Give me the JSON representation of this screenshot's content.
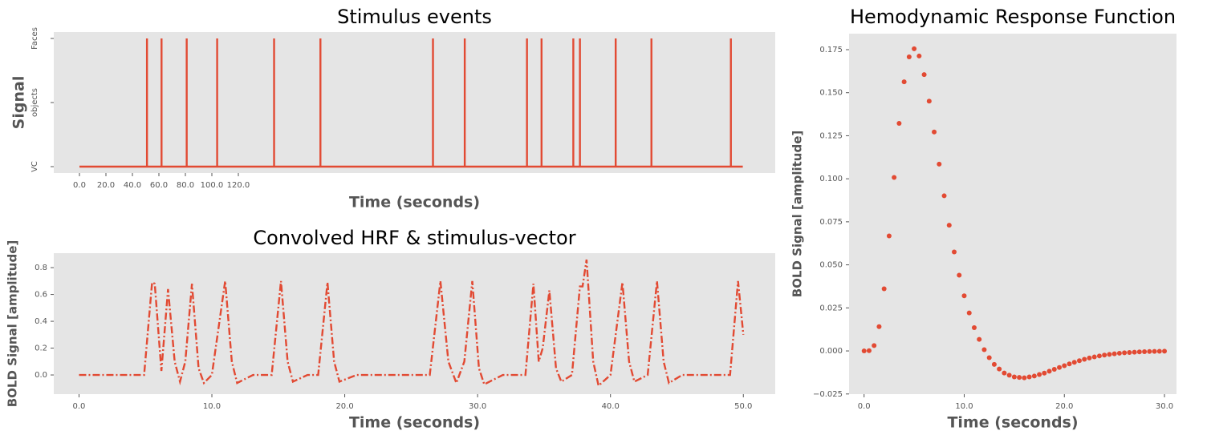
{
  "chart_data": [
    {
      "type": "line",
      "title": "Stimulus events",
      "xlabel": "Time (seconds)",
      "ylabel": "Signal",
      "color": "#E24A33",
      "linestyle": "solid",
      "grid": false,
      "x": [
        0,
        51,
        51,
        51,
        62,
        62,
        62,
        81,
        81,
        81,
        104,
        104,
        104,
        147,
        147,
        147,
        182,
        182,
        182,
        267,
        267,
        267,
        291,
        291,
        291,
        338,
        338,
        338,
        349,
        349,
        349,
        373,
        373,
        373,
        378,
        378,
        378,
        405,
        405,
        405,
        432,
        432,
        432,
        492,
        492,
        492,
        501
      ],
      "values": [
        0,
        0,
        2,
        0,
        0,
        2,
        0,
        0,
        2,
        0,
        0,
        2,
        0,
        0,
        2,
        0,
        0,
        2,
        0,
        0,
        2,
        0,
        0,
        2,
        0,
        0,
        2,
        0,
        0,
        2,
        0,
        0,
        2,
        0,
        0,
        2,
        0,
        0,
        2,
        0,
        0,
        2,
        0,
        0,
        2,
        0,
        0
      ],
      "xlim": [
        -19.4,
        525.5
      ],
      "ylim": [
        -0.1,
        2.1
      ],
      "xticks": [
        {
          "value": 0,
          "label": "0.0"
        },
        {
          "value": 20,
          "label": "20.0"
        },
        {
          "value": 40,
          "label": "40.0"
        },
        {
          "value": 60,
          "label": "60.0"
        },
        {
          "value": 80,
          "label": "80.0"
        },
        {
          "value": 100,
          "label": "100.0"
        },
        {
          "value": 120,
          "label": "120.0"
        }
      ],
      "yticks": [
        {
          "value": 0,
          "label": "VC"
        },
        {
          "value": 1,
          "label": "objects"
        },
        {
          "value": 2,
          "label": "Faces"
        }
      ]
    },
    {
      "type": "line",
      "title": "Convolved HRF & stimulus-vector",
      "xlabel": "Time (seconds)",
      "ylabel": "BOLD Signal [amplitude]",
      "color": "#E24A33",
      "linestyle": "dashdot",
      "grid": false,
      "x": [
        0,
        4.9,
        5.5,
        5.7,
        6.2,
        6.7,
        7.2,
        7.6,
        8.0,
        8.5,
        9.0,
        9.4,
        10.0,
        11.0,
        11.5,
        11.9,
        13.1,
        14.5,
        15.2,
        15.7,
        16.1,
        17.2,
        18.0,
        18.7,
        19.2,
        19.6,
        20.9,
        26.4,
        27.2,
        27.8,
        28.4,
        29.0,
        29.6,
        30.1,
        30.5,
        31.9,
        33.6,
        34.2,
        34.6,
        34.9,
        35.4,
        35.9,
        36.3,
        37.1,
        37.7,
        37.9,
        38.2,
        38.7,
        39.1,
        40.0,
        40.9,
        41.4,
        41.8,
        42.8,
        43.5,
        44.0,
        44.4,
        45.4,
        49.0,
        49.6,
        50
      ],
      "values": [
        0,
        0,
        0.69,
        0.68,
        0.03,
        0.64,
        0.1,
        -0.05,
        0.1,
        0.68,
        0.05,
        -0.06,
        0,
        0.7,
        0.1,
        -0.06,
        0,
        0,
        0.7,
        0.1,
        -0.05,
        0,
        0,
        0.69,
        0.1,
        -0.05,
        0,
        0,
        0.7,
        0.1,
        -0.06,
        0.1,
        0.7,
        0.05,
        -0.07,
        0,
        0,
        0.68,
        0.1,
        0.2,
        0.63,
        0.05,
        -0.05,
        0,
        0.66,
        0.66,
        0.86,
        0.1,
        -0.08,
        0,
        0.69,
        0.1,
        -0.05,
        0,
        0.7,
        0.1,
        -0.06,
        0,
        0,
        0.7,
        0.3
      ],
      "xlim": [
        -1.9,
        52.4
      ],
      "ylim": [
        -0.143,
        0.908
      ],
      "xticks": [
        {
          "value": 0,
          "label": "0.0"
        },
        {
          "value": 10,
          "label": "10.0"
        },
        {
          "value": 20,
          "label": "20.0"
        },
        {
          "value": 30,
          "label": "30.0"
        },
        {
          "value": 40,
          "label": "40.0"
        },
        {
          "value": 50,
          "label": "50.0"
        }
      ],
      "yticks": [
        {
          "value": 0,
          "label": "0.0"
        },
        0.2,
        0.4,
        0.6,
        0.8
      ]
    },
    {
      "type": "scatter",
      "title": "Hemodynamic Response Function",
      "xlabel": "Time (seconds)",
      "ylabel": "BOLD Signal [amplitude]",
      "color": "#E24A33",
      "grid": false,
      "x": [
        0,
        0.5,
        1,
        1.5,
        2,
        2.5,
        3,
        3.5,
        4,
        4.5,
        5,
        5.5,
        6,
        6.5,
        7,
        7.5,
        8,
        8.5,
        9,
        9.5,
        10,
        10.5,
        11,
        11.5,
        12,
        12.5,
        13,
        13.5,
        14,
        14.5,
        15,
        15.5,
        16,
        16.5,
        17,
        17.5,
        18,
        18.5,
        19,
        19.5,
        20,
        20.5,
        21,
        21.5,
        22,
        22.5,
        23,
        23.5,
        24,
        24.5,
        25,
        25.5,
        26,
        26.5,
        27,
        27.5,
        28,
        28.5,
        29,
        29.5,
        30
      ],
      "values": [
        0,
        0.00016,
        0.0031,
        0.0141,
        0.0361,
        0.0668,
        0.1008,
        0.1322,
        0.1563,
        0.1708,
        0.1755,
        0.1713,
        0.1605,
        0.1451,
        0.1272,
        0.1085,
        0.0901,
        0.073,
        0.0575,
        0.044,
        0.032,
        0.0221,
        0.0135,
        0.0067,
        0.0007,
        -0.0039,
        -0.0078,
        -0.0105,
        -0.0128,
        -0.0141,
        -0.0151,
        -0.0154,
        -0.0156,
        -0.0151,
        -0.0146,
        -0.0137,
        -0.0129,
        -0.0118,
        -0.0107,
        -0.0096,
        -0.0086,
        -0.00753,
        -0.00659,
        -0.00567,
        -0.00487,
        -0.00412,
        -0.00349,
        -0.00291,
        -0.00243,
        -0.002,
        -0.00165,
        -0.00134,
        -0.00109,
        -0.00088,
        -0.00071,
        -0.00056,
        -0.00045,
        -0.00035,
        -0.00028,
        -0.00022,
        -0.00017
      ],
      "xlim": [
        -1.5,
        31.2
      ],
      "ylim": [
        -0.0251,
        0.1843
      ],
      "xticks": [
        {
          "value": 0,
          "label": "0.0"
        },
        {
          "value": 10,
          "label": "10.0"
        },
        {
          "value": 20,
          "label": "20.0"
        },
        {
          "value": 30,
          "label": "30.0"
        }
      ],
      "yticks": [
        {
          "value": -0.025,
          "label": "−0.025"
        },
        {
          "value": 0,
          "label": "0.000"
        },
        {
          "value": 0.025,
          "label": "0.025"
        },
        {
          "value": 0.05,
          "label": "0.050"
        },
        {
          "value": 0.075,
          "label": "0.075"
        },
        {
          "value": 0.1,
          "label": "0.100"
        },
        {
          "value": 0.125,
          "label": "0.125"
        },
        {
          "value": 0.15,
          "label": "0.150"
        },
        {
          "value": 0.175,
          "label": "0.175"
        }
      ]
    }
  ]
}
